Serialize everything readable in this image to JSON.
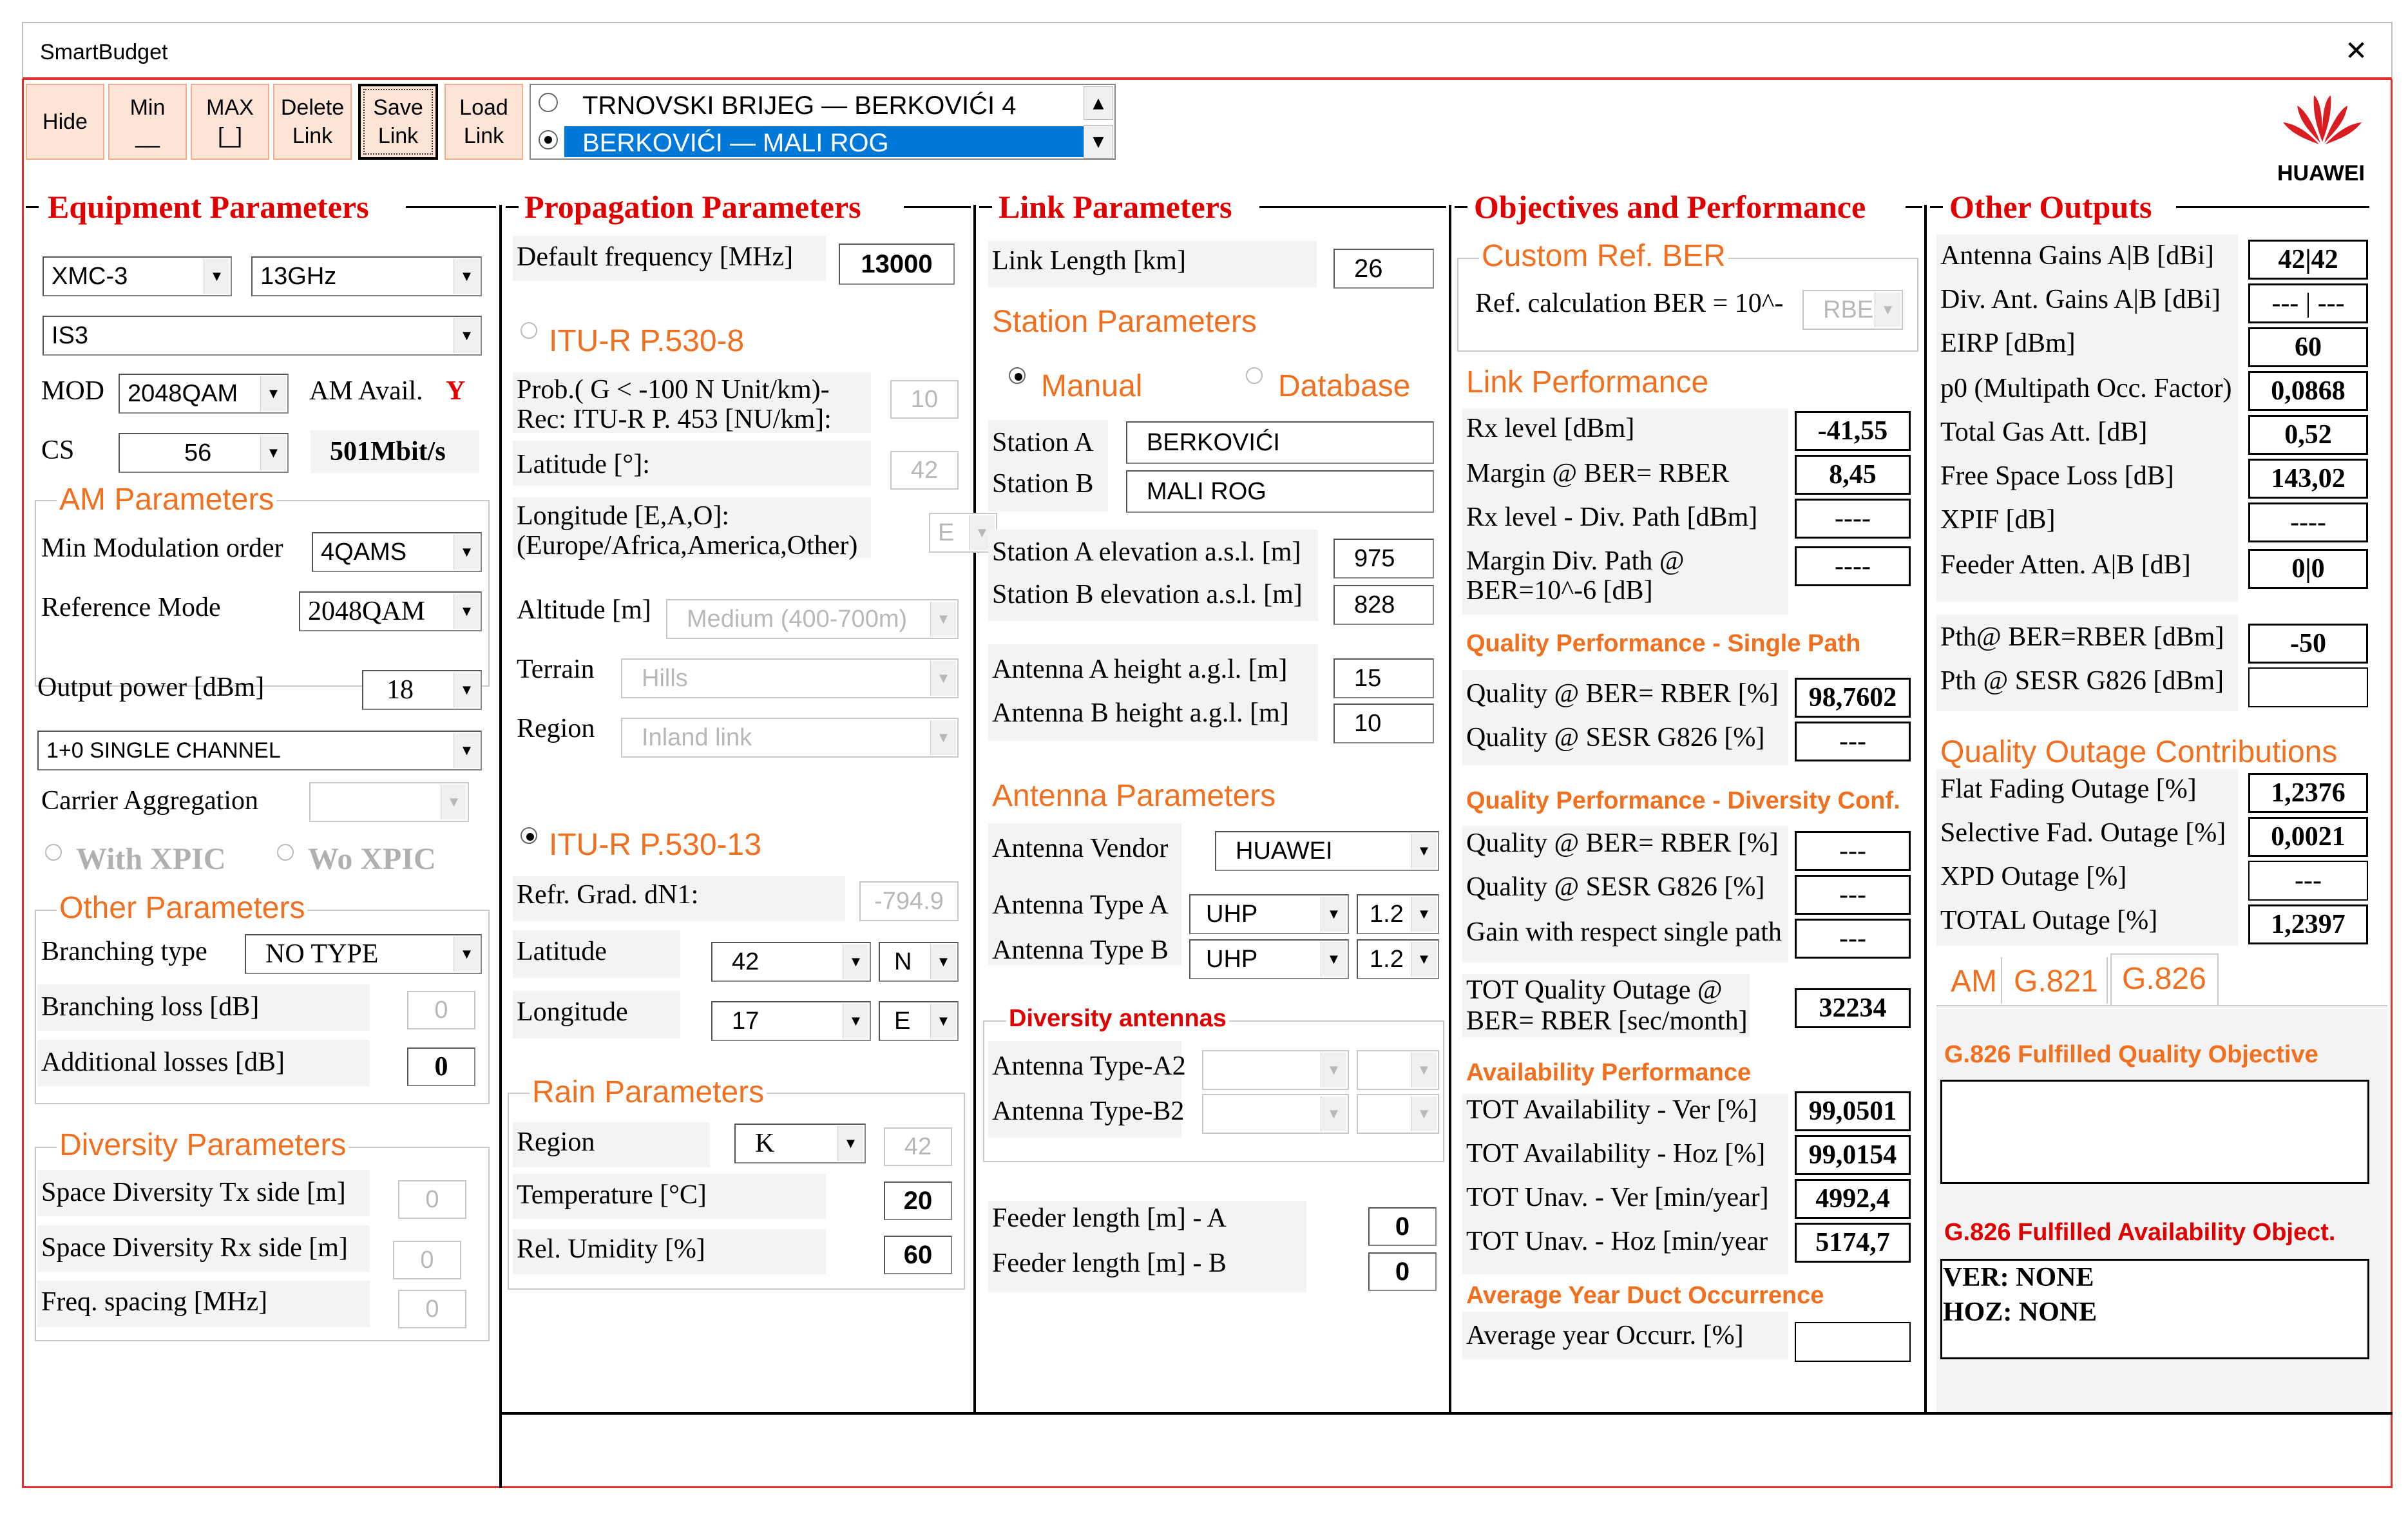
{
  "window": {
    "title": "SmartBudget",
    "close": "✕"
  },
  "toolbar": {
    "hide": "Hide",
    "min": [
      "Min",
      "__"
    ],
    "max": [
      "MAX",
      "[_]"
    ],
    "delete": [
      "Delete",
      "Link"
    ],
    "save": [
      "Save",
      "Link"
    ],
    "load": [
      "Load",
      "Link"
    ]
  },
  "links": [
    {
      "label": "TRNOVSKI BRIJEG — BERKOVIĆI 4",
      "selected": false
    },
    {
      "label": "BERKOVIĆI — MALI ROG",
      "selected": true
    }
  ],
  "logo": "HUAWEI",
  "colors": {
    "accent": "#f07020",
    "section_title": "#e00000",
    "button_bg": "#fce4d6",
    "selection": "#0078d7"
  },
  "equipment": {
    "title": "Equipment Parameters",
    "equipment_model": "XMC-3",
    "band": "13GHz",
    "variant": "IS3",
    "mod_label": "MOD",
    "mod_value": "2048QAM",
    "am_avail_label": "AM Avail.",
    "am_avail_value": "Y",
    "cs_label": "CS",
    "cs_value": "56",
    "capacity": "501Mbit/s",
    "am_params_title": "AM Parameters",
    "min_mod_label": "Min Modulation order",
    "min_mod_value": "4QAMS",
    "ref_mode_label": "Reference Mode",
    "ref_mode_value": "2048QAM",
    "output_power_label": "Output power [dBm]",
    "output_power_value": "18",
    "channel_config": "1+0 SINGLE CHANNEL",
    "carrier_agg_label": "Carrier Aggregation",
    "with_xpic": "With XPIC",
    "wo_xpic": "Wo XPIC",
    "other_params_title": "Other  Parameters",
    "branching_type_label": "Branching type",
    "branching_type_value": "NO TYPE",
    "branching_loss_label": "Branching loss [dB]",
    "branching_loss_value": "0",
    "additional_losses_label": "Additional losses [dB]",
    "additional_losses_value": "0",
    "diversity_title": "Diversity Parameters",
    "sd_tx_label": "Space Diversity Tx side [m]",
    "sd_tx_value": "0",
    "sd_rx_label": "Space Diversity Rx side [m]",
    "sd_rx_value": "0",
    "freq_spacing_label": "Freq. spacing [MHz]",
    "freq_spacing_value": "0"
  },
  "propagation": {
    "title": "Propagation Parameters",
    "default_freq_label": "Default frequency  [MHz]",
    "default_freq_value": "13000",
    "itu8_label": "ITU-R P.530-8",
    "prob_label_1": "Prob.( G < -100 N Unit/km)-",
    "prob_label_2": "Rec: ITU-R  P. 453 [NU/km]:",
    "prob_value": "10",
    "lat_label": "Latitude [°]:",
    "lat_value": "42",
    "lon_label_1": "Longitude [E,A,O]:",
    "lon_label_2": "(Europe/Africa,America,Other)",
    "lon_value": "E",
    "altitude_label": "Altitude [m]",
    "altitude_value": "Medium (400-700m)",
    "terrain_label": "Terrain",
    "terrain_value": "Hills",
    "region_label": "Region",
    "region_value": "Inland link",
    "itu13_label": "ITU-R P.530-13",
    "refr_label": "Refr. Grad. dN1:",
    "refr_value": "-794.9",
    "lat13_label": "Latitude",
    "lat13_value": "42",
    "lat13_hemi": "N",
    "lon13_label": "Longitude",
    "lon13_value": "17",
    "lon13_hemi": "E",
    "rain_title": "Rain Parameters",
    "rain_region_label": "Region",
    "rain_region_value": "K",
    "rain_region_num": "42",
    "temp_label": "Temperature [°C]",
    "temp_value": "20",
    "humidity_label": "Rel. Umidity [%]",
    "humidity_value": "60"
  },
  "link": {
    "title": "Link Parameters",
    "length_label": "Link Length  [km]",
    "length_value": "26",
    "station_title": "Station Parameters",
    "manual": "Manual",
    "database": "Database",
    "station_a_label": "Station A",
    "station_a_value": "BERKOVIĆI",
    "station_b_label": "Station B",
    "station_b_value": "MALI ROG",
    "elev_a_label": "Station A elevation a.s.l. [m]",
    "elev_a_value": "975",
    "elev_b_label": "Station B elevation a.s.l. [m]",
    "elev_b_value": "828",
    "ant_a_h_label": "Antenna A  height a.g.l. [m]",
    "ant_a_h_value": "15",
    "ant_b_h_label": "Antenna B height a.g.l. [m]",
    "ant_b_h_value": "10",
    "antenna_title": "Antenna Parameters",
    "vendor_label": "Antenna Vendor",
    "vendor_value": "HUAWEI",
    "type_a_label": "Antenna Type A",
    "type_a_value": "UHP",
    "type_a_size": "1.2",
    "type_b_label": "Antenna Type B",
    "type_b_value": "UHP",
    "type_b_size": "1.2",
    "div_ant_title": "Diversity antennas",
    "type_a2_label": "Antenna Type-A2",
    "type_b2_label": "Antenna Type-B2",
    "feeder_a_label": "Feeder length [m] - A",
    "feeder_a_value": "0",
    "feeder_b_label": "Feeder length [m] - B",
    "feeder_b_value": "0"
  },
  "objectives": {
    "title": "Objectives and Performance",
    "custom_ber_title": "Custom  Ref. BER",
    "ref_calc_label": "Ref. calculation BER = 10^-",
    "ref_calc_value": "RBE",
    "link_perf_title": "Link Performance",
    "rx_level_label": "Rx  level [dBm]",
    "rx_level_value": "-41,55",
    "margin_label": "Margin @ BER= RBER",
    "margin_value": "8,45",
    "rx_div_label": "Rx  level - Div. Path [dBm]",
    "rx_div_value": "----",
    "margin_div_label_1": "Margin Div. Path @",
    "margin_div_label_2": "BER=10^-6 [dB]",
    "margin_div_value": "----",
    "qp_single_title": "Quality Performance - Single Path",
    "q_rber_label": "Quality @ BER= RBER [%]",
    "q_rber_value": "98,7602",
    "q_sesr_label": "Quality @ SESR G826 [%]",
    "q_sesr_value": "---",
    "qp_div_title": "Quality Performance - Diversity Conf.",
    "qd_rber_label": "Quality @ BER= RBER [%]",
    "qd_rber_value": "---",
    "qd_sesr_label": "Quality @ SESR G826 [%]",
    "qd_sesr_value": "---",
    "gain_label": "Gain with respect single path",
    "gain_value": "---",
    "tot_q_label_1": "TOT Quality Outage @",
    "tot_q_label_2": "BER= RBER [sec/month]",
    "tot_q_value": "32234",
    "avail_title": "Availability Performance",
    "av_ver_label": "TOT Availability - Ver [%]",
    "av_ver_value": "99,0501",
    "av_hoz_label": "TOT Availability - Hoz [%]",
    "av_hoz_value": "99,0154",
    "un_ver_label": "TOT Unav. - Ver [min/year]",
    "un_ver_value": "4992,4",
    "un_hoz_label": "TOT Unav. - Hoz [min/year",
    "un_hoz_value": "5174,7",
    "duct_title": "Average Year Duct Occurrence",
    "duct_label": "Average year Occurr. [%]",
    "duct_value": ""
  },
  "other": {
    "title": "Other Outputs",
    "ant_gains_label": "Antenna Gains A|B [dBi]",
    "ant_gains_value": "42|42",
    "div_gains_label": "Div. Ant. Gains A|B [dBi]",
    "div_gains_value": "--- | ---",
    "eirp_label": "EIRP [dBm]",
    "eirp_value": "60",
    "p0_label": "p0 (Multipath Occ. Factor)",
    "p0_value": "0,0868",
    "gas_label": "Total Gas Att. [dB]",
    "gas_value": "0,52",
    "fsl_label": "Free Space Loss [dB]",
    "fsl_value": "143,02",
    "xpif_label": "XPIF [dB]",
    "xpif_value": "----",
    "feeder_label": "Feeder Atten.  A|B [dB]",
    "feeder_value": "0|0",
    "pth_rber_label": "Pth@ BER=RBER [dBm]",
    "pth_rber_value": "-50",
    "pth_sesr_label": "Pth @ SESR G826 [dBm]",
    "pth_sesr_value": "",
    "qoc_title": "Quality Outage Contributions",
    "flat_label": "Flat Fading Outage [%]",
    "flat_value": "1,2376",
    "sel_label": "Selective Fad.  Outage [%]",
    "sel_value": "0,0021",
    "xpd_label": "XPD Outage [%]",
    "xpd_value": "---",
    "total_label": "TOTAL Outage [%]",
    "total_value": "1,2397",
    "tabs": [
      "AM",
      "G.821",
      "G.826"
    ],
    "g826_quality_title": "G.826 Fulfilled Quality  Objective",
    "g826_avail_title": "G.826 Fulfilled Availability  Object.",
    "ver_line": "VER: NONE",
    "hoz_line": "HOZ: NONE"
  }
}
